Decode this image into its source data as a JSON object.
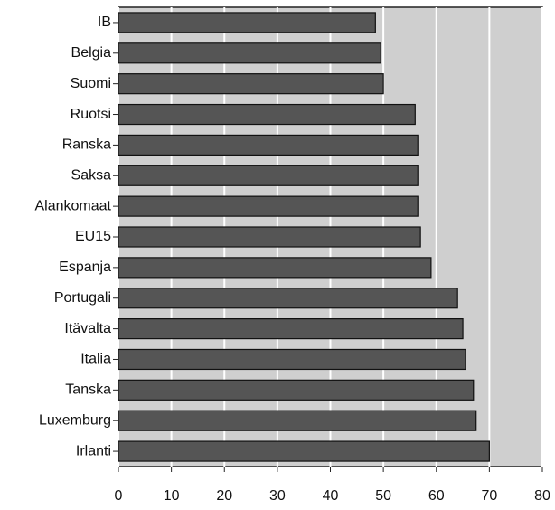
{
  "chart_data": {
    "type": "bar",
    "orientation": "horizontal",
    "categories": [
      "IB",
      "Belgia",
      "Suomi",
      "Ruotsi",
      "Ranska",
      "Saksa",
      "Alankomaat",
      "EU15",
      "Espanja",
      "Portugali",
      "Itävalta",
      "Italia",
      "Tanska",
      "Luxemburg",
      "Irlanti"
    ],
    "values": [
      48.5,
      49.5,
      50,
      56,
      56.5,
      56.5,
      56.5,
      57,
      59,
      64,
      65,
      65.5,
      67,
      67.5,
      70
    ],
    "color": "#555555",
    "xlim": [
      0,
      80
    ],
    "xticks": [
      0,
      10,
      20,
      30,
      40,
      50,
      60,
      70,
      80
    ],
    "grid": true
  }
}
